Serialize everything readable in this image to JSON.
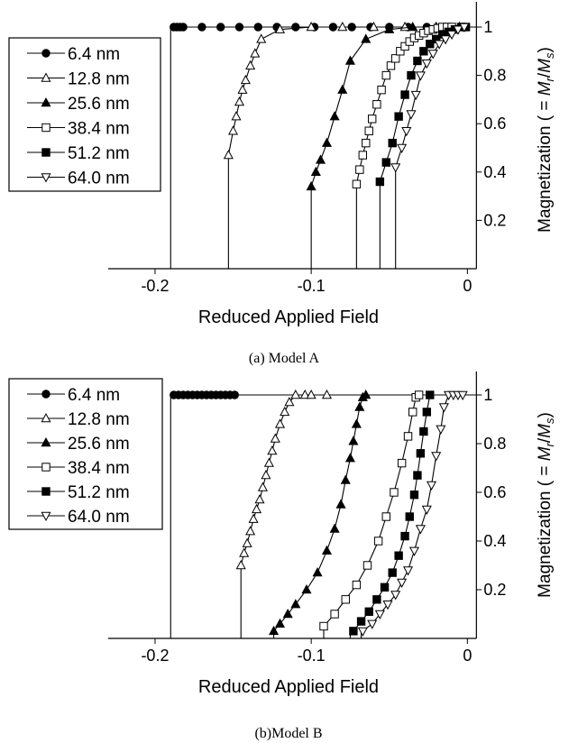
{
  "chart_data": [
    {
      "type": "line",
      "caption": "(a) Model A",
      "xlabel": "Reduced Applied Field",
      "ylabel_prefix": "Magnetization ( = ",
      "ylabel_math": "M",
      "ylabel_sub_r": "r",
      "ylabel_slash": "/",
      "ylabel_math2": "M",
      "ylabel_sub_s": "s",
      "ylabel_suffix": ")",
      "xlim": [
        -0.23,
        0.005
      ],
      "ylim": [
        0,
        1.05
      ],
      "x_ticks": [
        -0.2,
        -0.1,
        0
      ],
      "x_tick_labels": [
        "-0.2",
        "-0.1",
        "0"
      ],
      "y_ticks": [
        0.2,
        0.4,
        0.6,
        0.8,
        1.0
      ],
      "y_tick_labels": [
        "0.2",
        "0.4",
        "0.6",
        "0.8",
        "1"
      ],
      "legend_position": "top-left",
      "series": [
        {
          "name": "6.4 nm",
          "marker": "circle-filled",
          "x": [
            -0.188,
            -0.186,
            -0.184,
            -0.182,
            -0.17,
            -0.158,
            -0.146,
            -0.134,
            -0.122,
            -0.11,
            -0.098,
            -0.086,
            -0.074,
            -0.062,
            -0.05,
            -0.038,
            -0.026,
            -0.014,
            -0.002
          ],
          "y": [
            1,
            1,
            1,
            1,
            1,
            1,
            1,
            1,
            1,
            1,
            1,
            1,
            1,
            1,
            1,
            1,
            1,
            1,
            1
          ],
          "drop_x": -0.19
        },
        {
          "name": "12.8 nm",
          "marker": "triangle-up-open",
          "x": [
            -0.153,
            -0.15,
            -0.148,
            -0.146,
            -0.144,
            -0.142,
            -0.139,
            -0.136,
            -0.132,
            -0.12,
            -0.1,
            -0.08,
            -0.06,
            -0.04,
            -0.02,
            -0.005
          ],
          "y": [
            0.47,
            0.57,
            0.63,
            0.69,
            0.74,
            0.78,
            0.84,
            0.89,
            0.95,
            0.99,
            1,
            1,
            1,
            1,
            1,
            1
          ],
          "drop_x": -0.153
        },
        {
          "name": "25.6 nm",
          "marker": "triangle-up-filled",
          "x": [
            -0.1,
            -0.097,
            -0.094,
            -0.09,
            -0.085,
            -0.08,
            -0.075,
            -0.065,
            -0.05,
            -0.035,
            -0.02,
            -0.005
          ],
          "y": [
            0.34,
            0.4,
            0.45,
            0.52,
            0.63,
            0.74,
            0.86,
            0.95,
            0.99,
            1,
            1,
            1
          ],
          "drop_x": -0.1
        },
        {
          "name": "38.4 nm",
          "marker": "square-open",
          "x": [
            -0.071,
            -0.069,
            -0.067,
            -0.065,
            -0.063,
            -0.061,
            -0.058,
            -0.055,
            -0.052,
            -0.049,
            -0.046,
            -0.043,
            -0.04,
            -0.037,
            -0.034,
            -0.031,
            -0.028,
            -0.025,
            -0.022,
            -0.019,
            -0.016,
            -0.013,
            -0.01
          ],
          "y": [
            0.35,
            0.41,
            0.47,
            0.52,
            0.57,
            0.62,
            0.68,
            0.74,
            0.8,
            0.84,
            0.87,
            0.9,
            0.92,
            0.94,
            0.955,
            0.965,
            0.975,
            0.985,
            0.99,
            0.995,
            1,
            1,
            1
          ],
          "drop_x": -0.071
        },
        {
          "name": "51.2 nm",
          "marker": "square-filled",
          "x": [
            -0.056,
            -0.052,
            -0.048,
            -0.044,
            -0.04,
            -0.036,
            -0.032,
            -0.028,
            -0.024,
            -0.02,
            -0.016,
            -0.012,
            -0.008,
            -0.004,
            -0.001
          ],
          "y": [
            0.36,
            0.44,
            0.52,
            0.63,
            0.72,
            0.8,
            0.86,
            0.9,
            0.93,
            0.95,
            0.97,
            0.98,
            0.99,
            1,
            1
          ],
          "drop_x": -0.056
        },
        {
          "name": "64.0 nm",
          "marker": "triangle-down-open",
          "x": [
            -0.046,
            -0.042,
            -0.039,
            -0.036,
            -0.033,
            -0.03,
            -0.026,
            -0.022,
            -0.018,
            -0.014,
            -0.01,
            -0.006,
            -0.002
          ],
          "y": [
            0.42,
            0.5,
            0.57,
            0.64,
            0.72,
            0.8,
            0.85,
            0.89,
            0.93,
            0.95,
            0.97,
            0.99,
            1
          ],
          "drop_x": -0.046
        }
      ]
    },
    {
      "type": "line",
      "caption": "(b)Model B",
      "xlabel": "Reduced Applied Field",
      "ylabel_prefix": "Magnetization ( = ",
      "ylabel_math": "M",
      "ylabel_sub_r": "r",
      "ylabel_slash": "/",
      "ylabel_math2": "M",
      "ylabel_sub_s": "s",
      "ylabel_suffix": ")",
      "xlim": [
        -0.23,
        0.005
      ],
      "ylim": [
        0,
        1.05
      ],
      "x_ticks": [
        -0.2,
        -0.1,
        0
      ],
      "x_tick_labels": [
        "-0.2",
        "-0.1",
        "0"
      ],
      "y_ticks": [
        0.2,
        0.4,
        0.6,
        0.8,
        1.0
      ],
      "y_tick_labels": [
        "0.2",
        "0.4",
        "0.6",
        "0.8",
        "1"
      ],
      "legend_position": "top-left",
      "series": [
        {
          "name": "6.4 nm",
          "marker": "circle-filled",
          "x": [
            -0.188,
            -0.185,
            -0.182,
            -0.179,
            -0.176,
            -0.173,
            -0.17,
            -0.167,
            -0.164,
            -0.161,
            -0.158,
            -0.155,
            -0.152,
            -0.149
          ],
          "y": [
            1,
            1,
            1,
            1,
            1,
            1,
            1,
            1,
            1,
            1,
            1,
            1,
            1,
            1
          ],
          "drop_x": -0.19
        },
        {
          "name": "12.8 nm",
          "marker": "triangle-up-open",
          "x": [
            -0.145,
            -0.143,
            -0.141,
            -0.139,
            -0.137,
            -0.135,
            -0.133,
            -0.131,
            -0.129,
            -0.127,
            -0.125,
            -0.123,
            -0.12,
            -0.117,
            -0.114,
            -0.11,
            -0.104,
            -0.1,
            -0.09
          ],
          "y": [
            0.3,
            0.35,
            0.39,
            0.44,
            0.49,
            0.53,
            0.57,
            0.62,
            0.67,
            0.72,
            0.77,
            0.82,
            0.88,
            0.93,
            0.97,
            1,
            1,
            1,
            1
          ],
          "drop_x": -0.145
        },
        {
          "name": "25.6 nm",
          "marker": "triangle-up-filled",
          "x": [
            -0.124,
            -0.12,
            -0.115,
            -0.11,
            -0.103,
            -0.096,
            -0.09,
            -0.085,
            -0.081,
            -0.078,
            -0.075,
            -0.073,
            -0.071,
            -0.069,
            -0.067,
            -0.065
          ],
          "y": [
            0.03,
            0.06,
            0.1,
            0.14,
            0.2,
            0.27,
            0.36,
            0.45,
            0.55,
            0.65,
            0.74,
            0.81,
            0.88,
            0.95,
            0.99,
            1
          ],
          "drop_x": -0.124
        },
        {
          "name": "38.4 nm",
          "marker": "square-open",
          "x": [
            -0.092,
            -0.085,
            -0.078,
            -0.071,
            -0.064,
            -0.057,
            -0.052,
            -0.047,
            -0.042,
            -0.038,
            -0.035,
            -0.033,
            -0.031
          ],
          "y": [
            0.05,
            0.1,
            0.16,
            0.22,
            0.3,
            0.4,
            0.5,
            0.6,
            0.72,
            0.83,
            0.93,
            0.99,
            1
          ],
          "drop_x": -0.092
        },
        {
          "name": "51.2 nm",
          "marker": "square-filled",
          "x": [
            -0.073,
            -0.068,
            -0.063,
            -0.058,
            -0.053,
            -0.048,
            -0.044,
            -0.04,
            -0.037,
            -0.034,
            -0.032,
            -0.03,
            -0.028,
            -0.026,
            -0.024
          ],
          "y": [
            0.03,
            0.07,
            0.11,
            0.16,
            0.21,
            0.27,
            0.34,
            0.42,
            0.5,
            0.59,
            0.67,
            0.76,
            0.85,
            0.93,
            1
          ],
          "drop_x": -0.075
        },
        {
          "name": "64.0 nm",
          "marker": "triangle-down-open",
          "x": [
            -0.067,
            -0.061,
            -0.056,
            -0.051,
            -0.046,
            -0.042,
            -0.038,
            -0.034,
            -0.03,
            -0.026,
            -0.023,
            -0.02,
            -0.017,
            -0.015,
            -0.012,
            -0.009,
            -0.006,
            -0.003
          ],
          "y": [
            0.03,
            0.06,
            0.1,
            0.14,
            0.18,
            0.23,
            0.28,
            0.36,
            0.45,
            0.53,
            0.63,
            0.75,
            0.86,
            0.95,
            1,
            1,
            1,
            1
          ],
          "drop_x": -0.068
        }
      ]
    }
  ]
}
